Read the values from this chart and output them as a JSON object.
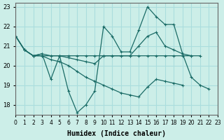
{
  "xlabel": "Humidex (Indice chaleur)",
  "bg_color": "#cceee8",
  "line_color": "#1a6b66",
  "grid_color": "#aadddd",
  "xlim": [
    0,
    23
  ],
  "ylim": [
    17.5,
    23.2
  ],
  "yticks": [
    18,
    19,
    20,
    21,
    22,
    23
  ],
  "xticks": [
    0,
    1,
    2,
    3,
    4,
    5,
    6,
    7,
    8,
    9,
    10,
    11,
    12,
    13,
    14,
    15,
    16,
    17,
    18,
    19,
    20,
    21,
    22,
    23
  ],
  "series": [
    {
      "x": [
        0,
        1,
        2,
        3,
        4,
        5,
        6,
        7,
        8,
        9,
        10,
        11,
        12,
        13,
        14,
        15,
        16,
        17,
        18,
        19,
        20,
        21
      ],
      "y": [
        21.5,
        20.8,
        20.5,
        20.5,
        20.5,
        20.5,
        20.5,
        20.5,
        20.5,
        20.5,
        20.5,
        20.5,
        20.5,
        20.5,
        20.5,
        20.5,
        20.5,
        20.5,
        20.5,
        20.5,
        20.5,
        20.5
      ]
    },
    {
      "x": [
        0,
        1,
        2,
        3,
        4,
        5,
        6,
        7,
        8,
        9,
        10,
        11,
        12,
        13,
        14,
        15,
        16,
        17,
        18,
        19,
        20,
        21,
        22
      ],
      "y": [
        21.5,
        20.8,
        20.5,
        20.6,
        19.3,
        20.5,
        18.7,
        17.6,
        18.0,
        18.7,
        22.0,
        21.5,
        20.7,
        20.7,
        21.8,
        23.0,
        22.5,
        22.1,
        22.1,
        20.6,
        19.4,
        19.0,
        18.8
      ]
    },
    {
      "x": [
        0,
        1,
        2,
        3,
        4,
        5,
        6,
        7,
        8,
        9,
        10,
        11,
        12,
        13,
        14,
        15,
        16,
        17,
        18,
        19,
        20
      ],
      "y": [
        21.5,
        20.8,
        20.5,
        20.6,
        20.5,
        20.5,
        20.4,
        20.3,
        20.2,
        20.1,
        20.5,
        20.5,
        20.5,
        20.5,
        21.0,
        21.5,
        21.7,
        21.0,
        20.8,
        20.6,
        20.5
      ]
    },
    {
      "x": [
        0,
        1,
        2,
        3,
        4,
        5,
        6,
        7,
        8,
        9,
        10,
        11,
        12,
        13,
        14,
        15,
        16,
        17,
        18,
        19
      ],
      "y": [
        21.5,
        20.8,
        20.5,
        20.5,
        20.3,
        20.2,
        20.0,
        19.7,
        19.4,
        19.2,
        19.0,
        18.8,
        18.6,
        18.5,
        18.4,
        18.9,
        19.3,
        19.2,
        19.1,
        19.0
      ]
    }
  ]
}
